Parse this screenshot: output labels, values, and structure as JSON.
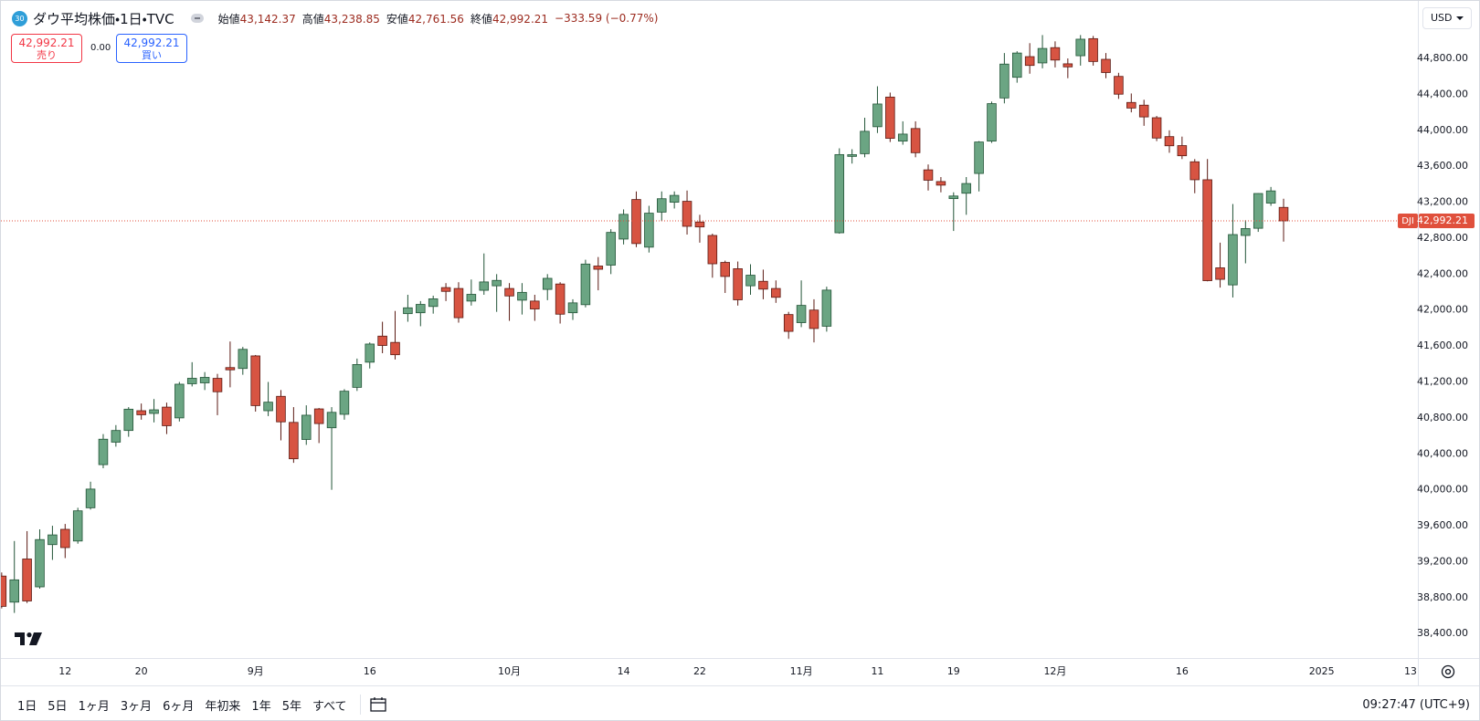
{
  "header": {
    "badge": "30",
    "title": "ダウ平均株価・1日・TVC",
    "ohlc": [
      {
        "label": "始値",
        "value": "43,142.37"
      },
      {
        "label": "高値",
        "value": "43,238.85"
      },
      {
        "label": "安値",
        "value": "42,761.56"
      },
      {
        "label": "終値",
        "value": "42,992.21"
      }
    ],
    "change": "−333.59 (−0.77%)"
  },
  "trade": {
    "sell_price": "42,992.21",
    "sell_label": "売り",
    "spread": "0.00",
    "buy_price": "42,992.21",
    "buy_label": "買い"
  },
  "currency": "USD",
  "chart_data": {
    "type": "candlestick",
    "open": [
      39040,
      38750,
      39230,
      38920,
      39390,
      39560,
      39430,
      39800,
      40280,
      40530,
      40660,
      40880,
      40850,
      40920,
      40800,
      41180,
      41190,
      41240,
      41360,
      41350,
      41490,
      40880,
      41040,
      40750,
      40560,
      40900,
      40690,
      40840,
      41140,
      41420,
      41710,
      41640,
      41960,
      41970,
      42040,
      42250,
      42240,
      42100,
      42220,
      42270,
      42240,
      42110,
      42100,
      42230,
      42290,
      41970,
      42060,
      42490,
      42500,
      42790,
      43230,
      42700,
      43090,
      43200,
      43210,
      42980,
      42830,
      42530,
      42460,
      42270,
      42320,
      42240,
      41950,
      41860,
      42000,
      41820,
      42860,
      43710,
      43740,
      44040,
      44370,
      43880,
      44020,
      43560,
      43430,
      43240,
      43300,
      43520,
      43880,
      44360,
      44590,
      44820,
      44750,
      44920,
      44740,
      44830,
      45020,
      44790,
      44600,
      44310,
      44280,
      44140,
      43930,
      43830,
      43650,
      43450,
      42470,
      42280,
      42830,
      42910,
      43190,
      43142.37
    ],
    "high": [
      39080,
      39430,
      39540,
      39560,
      39600,
      39620,
      39800,
      40090,
      40620,
      40720,
      40920,
      40960,
      41010,
      40970,
      41200,
      41420,
      41310,
      41290,
      41650,
      41590,
      41500,
      41200,
      41110,
      40920,
      40940,
      40910,
      40920,
      41120,
      41460,
      41640,
      41870,
      41990,
      42170,
      42100,
      42160,
      42300,
      42310,
      42340,
      42630,
      42400,
      42300,
      42300,
      42170,
      42400,
      42310,
      42120,
      42560,
      42590,
      42900,
      43120,
      43320,
      43160,
      43320,
      43320,
      43330,
      43060,
      42850,
      42550,
      42540,
      42510,
      42450,
      42330,
      41980,
      42330,
      42120,
      42260,
      43800,
      43790,
      44140,
      44490,
      44420,
      44100,
      44100,
      43620,
      43480,
      43310,
      43480,
      43880,
      44320,
      44860,
      44880,
      44970,
      45060,
      44990,
      44800,
      45060,
      45050,
      44860,
      44640,
      44410,
      44340,
      44160,
      44000,
      43930,
      43680,
      43680,
      42750,
      43180,
      43000,
      43300,
      43370,
      43238.85
    ],
    "low": [
      38680,
      38630,
      38740,
      38900,
      39220,
      39240,
      39400,
      39780,
      40240,
      40480,
      40590,
      40780,
      40750,
      40620,
      40760,
      41150,
      41110,
      40830,
      41140,
      41280,
      40870,
      40820,
      40550,
      40300,
      40500,
      40520,
      40000,
      40780,
      41100,
      41350,
      41520,
      41450,
      41870,
      41820,
      41960,
      42100,
      41860,
      42050,
      42170,
      41980,
      41880,
      41950,
      41880,
      42110,
      41850,
      41890,
      42030,
      42220,
      42400,
      42730,
      42700,
      42640,
      42990,
      43130,
      42840,
      42750,
      42360,
      42190,
      42050,
      42170,
      42120,
      42080,
      41680,
      41810,
      41640,
      41760,
      42850,
      43630,
      43700,
      43970,
      43870,
      43840,
      43700,
      43330,
      43310,
      42880,
      43060,
      43320,
      43860,
      44300,
      44530,
      44630,
      44690,
      44700,
      44580,
      44720,
      44720,
      44580,
      44350,
      44200,
      44050,
      43880,
      43750,
      43680,
      43300,
      42320,
      42250,
      42140,
      42520,
      42870,
      43160,
      42761.56
    ],
    "close": [
      38703,
      38998,
      38763,
      39446,
      39498,
      39357,
      39766,
      40008,
      40563,
      40660,
      40897,
      40835,
      40890,
      40713,
      41175,
      41241,
      41251,
      41091,
      41335,
      41563,
      40937,
      40975,
      40756,
      40345,
      40830,
      40737,
      40862,
      41097,
      41394,
      41622,
      41606,
      41503,
      42025,
      42063,
      42125,
      42208,
      41915,
      42175,
      42313,
      42330,
      42157,
      42197,
      42012,
      42353,
      41954,
      42080,
      42512,
      42454,
      42864,
      43065,
      42740,
      43078,
      43239,
      43276,
      42932,
      42925,
      42515,
      42374,
      42114,
      42388,
      42233,
      42142,
      41763,
      42052,
      41795,
      42222,
      43730,
      43729,
      43989,
      44293,
      43911,
      43958,
      43751,
      43445,
      43390,
      43269,
      43408,
      43870,
      44297,
      44737,
      44860,
      44722,
      44911,
      44782,
      44706,
      45014,
      44766,
      44643,
      44402,
      44248,
      44149,
      43914,
      43828,
      43717,
      43450,
      42327,
      42342,
      42840,
      42907,
      43297,
      43326,
      42992.21
    ],
    "up_color": "#6ba583",
    "down_color": "#d75442",
    "up_border_color": "#225437",
    "down_border_color": "#5b1a13",
    "xlim": [
      -0.06,
      111.58
    ],
    "ylim": [
      38128,
      45440
    ],
    "xticks": [
      {
        "value": 5,
        "label": "12"
      },
      {
        "value": 11,
        "label": "20"
      },
      {
        "value": 20,
        "label": "9月"
      },
      {
        "value": 29,
        "label": "16"
      },
      {
        "value": 40,
        "label": "10月"
      },
      {
        "value": 49,
        "label": "14"
      },
      {
        "value": 55,
        "label": "22"
      },
      {
        "value": 63,
        "label": "11月"
      },
      {
        "value": 69,
        "label": "11"
      },
      {
        "value": 75,
        "label": "19"
      },
      {
        "value": 83,
        "label": "12月"
      },
      {
        "value": 93,
        "label": "16"
      },
      {
        "value": 104,
        "label": "2025"
      },
      {
        "value": 111,
        "label": "13"
      }
    ],
    "yticks": [
      {
        "value": 38400,
        "label": "38,400.00"
      },
      {
        "value": 38800,
        "label": "38,800.00"
      },
      {
        "value": 39200,
        "label": "39,200.00"
      },
      {
        "value": 39600,
        "label": "39,600.00"
      },
      {
        "value": 40000,
        "label": "40,000.00"
      },
      {
        "value": 40400,
        "label": "40,400.00"
      },
      {
        "value": 40800,
        "label": "40,800.00"
      },
      {
        "value": 41200,
        "label": "41,200.00"
      },
      {
        "value": 41600,
        "label": "41,600.00"
      },
      {
        "value": 42000,
        "label": "42,000.00"
      },
      {
        "value": 42400,
        "label": "42,400.00"
      },
      {
        "value": 42800,
        "label": "42,800.00"
      },
      {
        "value": 43200,
        "label": "43,200.00"
      },
      {
        "value": 43600,
        "label": "43,600.00"
      },
      {
        "value": 44000,
        "label": "44,000.00"
      },
      {
        "value": 44400,
        "label": "44,400.00"
      },
      {
        "value": 44800,
        "label": "44,800.00"
      }
    ],
    "grid": false,
    "last_price": {
      "symbol": "DJI",
      "value": 42992.21,
      "label": "42,992.21",
      "color": "#e0503c"
    }
  },
  "toolbar": {
    "ranges": [
      "1日",
      "5日",
      "1ヶ月",
      "3ヶ月",
      "6ヶ月",
      "年初来",
      "1年",
      "5年",
      "すべて"
    ],
    "time": "09:27:47 (UTC+9)"
  }
}
